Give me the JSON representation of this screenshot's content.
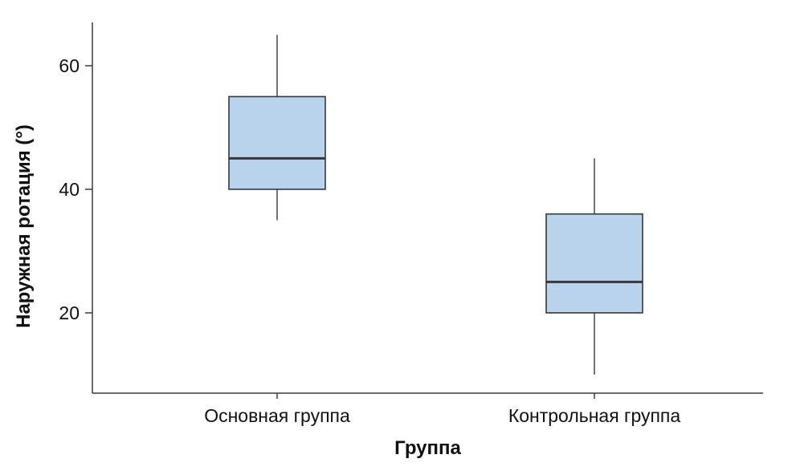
{
  "chart_data": {
    "type": "boxplot",
    "title": "",
    "xlabel": "Группа",
    "ylabel": "Наружная ротация (°)",
    "y_ticks": [
      20,
      40,
      60
    ],
    "y_domain": [
      7,
      67
    ],
    "grid": "off",
    "legend": "none",
    "categories": [
      "Основная группа",
      "Контрольная группа"
    ],
    "groups": [
      {
        "label": "Основная группа",
        "whisker_low": 35,
        "q1": 40,
        "median": 45,
        "q3": 55,
        "whisker_high": 65
      },
      {
        "label": "Контрольная группа",
        "whisker_low": 10,
        "q1": 20,
        "median": 25,
        "q3": 36,
        "whisker_high": 45
      }
    ],
    "box_fill": "#b9d4ec",
    "box_stroke": "#38383a",
    "axis_color": "#3c3c3c",
    "text_color": "#111111"
  }
}
